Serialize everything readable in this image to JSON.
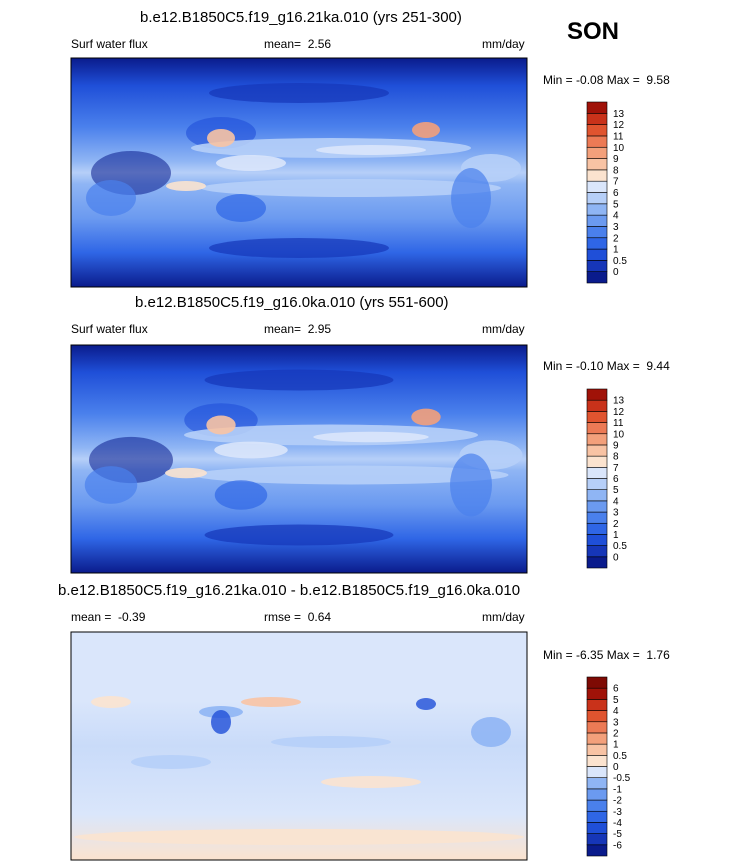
{
  "season": "SON",
  "chart_data": [
    {
      "type": "heatmap",
      "title": "b.e12.B1850C5.f19_g16.21ka.010 (yrs 251-300)",
      "left_label": "Surf water flux",
      "center_label": "mean=",
      "center_value": "2.56",
      "right_label": "mm/day",
      "min_label": "Min =",
      "min_value": "-0.08",
      "max_label": "Max =",
      "max_value": "9.58",
      "colorbar": {
        "levels": [
          "0",
          "0.5",
          "1",
          "2",
          "3",
          "4",
          "5",
          "6",
          "7",
          "8",
          "9",
          "10",
          "11",
          "12",
          "13"
        ],
        "colors": [
          "#0a1b8c",
          "#1636b8",
          "#1f4fd8",
          "#2f66e6",
          "#4a80ec",
          "#6b9af0",
          "#8fb5f4",
          "#b6cff8",
          "#dae6fb",
          "#fbe3cf",
          "#f8c3a4",
          "#f3a07b",
          "#ec7a55",
          "#e0542f",
          "#c9321a",
          "#a01208"
        ]
      }
    },
    {
      "type": "heatmap",
      "title": "b.e12.B1850C5.f19_g16.0ka.010 (yrs 551-600)",
      "left_label": "Surf water flux",
      "center_label": "mean=",
      "center_value": "2.95",
      "right_label": "mm/day",
      "min_label": "Min =",
      "min_value": "-0.10",
      "max_label": "Max =",
      "max_value": "9.44",
      "colorbar": {
        "levels": [
          "0",
          "0.5",
          "1",
          "2",
          "3",
          "4",
          "5",
          "6",
          "7",
          "8",
          "9",
          "10",
          "11",
          "12",
          "13"
        ],
        "colors": [
          "#0a1b8c",
          "#1636b8",
          "#1f4fd8",
          "#2f66e6",
          "#4a80ec",
          "#6b9af0",
          "#8fb5f4",
          "#b6cff8",
          "#dae6fb",
          "#fbe3cf",
          "#f8c3a4",
          "#f3a07b",
          "#ec7a55",
          "#e0542f",
          "#c9321a",
          "#a01208"
        ]
      }
    },
    {
      "type": "heatmap",
      "title": "b.e12.B1850C5.f19_g16.21ka.010 - b.e12.B1850C5.f19_g16.0ka.010",
      "left_label": "mean =",
      "left_value": "-0.39",
      "center_label": "rmse =",
      "center_value": "0.64",
      "right_label": "mm/day",
      "min_label": "Min =",
      "min_value": "-6.35",
      "max_label": "Max =",
      "max_value": "1.76",
      "colorbar": {
        "levels": [
          "-6",
          "-5",
          "-4",
          "-3",
          "-2",
          "-1",
          "-0.5",
          "0",
          "0.5",
          "1",
          "2",
          "3",
          "4",
          "5",
          "6"
        ],
        "colors": [
          "#0a1b8c",
          "#1636b8",
          "#1f4fd8",
          "#2f66e6",
          "#4a80ec",
          "#6b9af0",
          "#8fb5f4",
          "#dae6fb",
          "#fbe3cf",
          "#f8c3a4",
          "#f3a07b",
          "#ec7a55",
          "#e0542f",
          "#c9321a",
          "#a01208",
          "#7e0a04"
        ]
      }
    }
  ]
}
